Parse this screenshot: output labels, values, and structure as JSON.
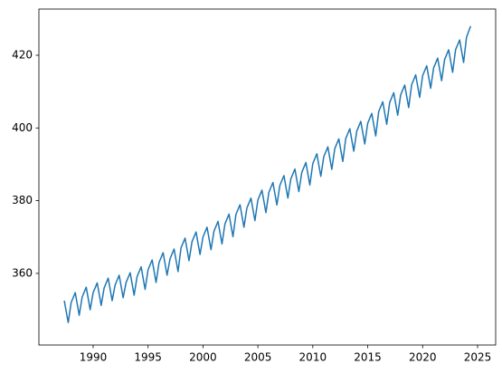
{
  "chart_data": {
    "type": "line",
    "color": "#1f77b4",
    "x": [
      1987.37,
      1987.73,
      1988.0,
      1988.37,
      1988.73,
      1989.0,
      1989.37,
      1989.73,
      1990.0,
      1990.37,
      1990.73,
      1991.0,
      1991.37,
      1991.73,
      1992.0,
      1992.37,
      1992.73,
      1993.0,
      1993.37,
      1993.73,
      1994.0,
      1994.37,
      1994.73,
      1995.0,
      1995.37,
      1995.73,
      1996.0,
      1996.37,
      1996.73,
      1997.0,
      1997.37,
      1997.73,
      1998.0,
      1998.37,
      1998.73,
      1999.0,
      1999.37,
      1999.73,
      2000.0,
      2000.37,
      2000.73,
      2001.0,
      2001.37,
      2001.73,
      2002.0,
      2002.37,
      2002.73,
      2003.0,
      2003.37,
      2003.73,
      2004.0,
      2004.37,
      2004.73,
      2005.0,
      2005.37,
      2005.73,
      2006.0,
      2006.37,
      2006.73,
      2007.0,
      2007.37,
      2007.73,
      2008.0,
      2008.37,
      2008.73,
      2009.0,
      2009.37,
      2009.73,
      2010.0,
      2010.37,
      2010.73,
      2011.0,
      2011.37,
      2011.73,
      2012.0,
      2012.37,
      2012.73,
      2013.0,
      2013.37,
      2013.73,
      2014.0,
      2014.37,
      2014.73,
      2015.0,
      2015.37,
      2015.73,
      2016.0,
      2016.37,
      2016.73,
      2017.0,
      2017.37,
      2017.73,
      2018.0,
      2018.37,
      2018.73,
      2019.0,
      2019.37,
      2019.73,
      2020.0,
      2020.37,
      2020.73,
      2021.0,
      2021.37,
      2021.73,
      2022.0,
      2022.37,
      2022.73,
      2023.0,
      2023.37,
      2023.73,
      2024.0,
      2024.37
    ],
    "values": [
      352.5,
      346.5,
      352.0,
      354.7,
      348.5,
      353.5,
      356.2,
      350.0,
      354.7,
      357.4,
      351.2,
      356.0,
      358.7,
      352.5,
      356.8,
      359.5,
      353.3,
      357.5,
      360.2,
      354.0,
      359.1,
      361.8,
      355.6,
      361.0,
      363.7,
      357.5,
      363.0,
      365.7,
      359.5,
      364.0,
      366.7,
      360.5,
      367.0,
      369.7,
      363.5,
      368.7,
      371.4,
      365.2,
      370.0,
      372.7,
      366.5,
      371.6,
      374.3,
      368.1,
      373.6,
      376.3,
      370.1,
      376.2,
      378.9,
      372.7,
      378.0,
      380.7,
      374.5,
      380.2,
      382.9,
      376.7,
      382.3,
      385.0,
      378.8,
      384.2,
      386.9,
      380.7,
      386.0,
      388.7,
      382.5,
      387.8,
      390.5,
      384.3,
      390.2,
      392.9,
      386.7,
      392.1,
      394.8,
      388.6,
      394.3,
      397.0,
      390.8,
      397.1,
      399.8,
      393.6,
      399.1,
      401.8,
      395.6,
      401.3,
      404.0,
      397.8,
      404.5,
      407.2,
      401.0,
      407.0,
      409.7,
      403.5,
      409.1,
      411.8,
      405.6,
      411.9,
      414.6,
      408.4,
      414.4,
      417.1,
      410.9,
      416.5,
      419.2,
      413.0,
      418.8,
      421.5,
      415.3,
      421.5,
      424.2,
      418.0,
      425.0,
      428.0
    ],
    "xlim": [
      1985.06,
      2026.65
    ],
    "xticks": [
      1990,
      1995,
      2000,
      2005,
      2010,
      2015,
      2020,
      2025
    ],
    "ylim": [
      340.3,
      432.7
    ],
    "yticks": [
      360,
      380,
      400,
      420
    ]
  }
}
